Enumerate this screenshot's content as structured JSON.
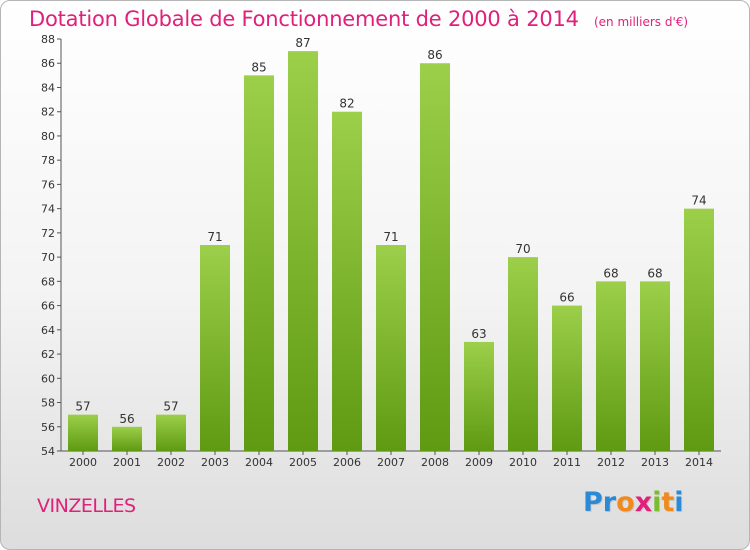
{
  "chart_data": {
    "type": "bar",
    "title": "Dotation Globale de Fonctionnement de 2000 à 2014",
    "subtitle": "(en milliers d'€)",
    "categories": [
      "2000",
      "2001",
      "2002",
      "2003",
      "2004",
      "2005",
      "2006",
      "2007",
      "2008",
      "2009",
      "2010",
      "2011",
      "2012",
      "2013",
      "2014"
    ],
    "values": [
      57,
      56,
      57,
      71,
      85,
      87,
      82,
      71,
      86,
      63,
      70,
      66,
      68,
      68,
      74
    ],
    "ylim": [
      54,
      88
    ],
    "yticks": [
      54,
      56,
      58,
      60,
      62,
      64,
      66,
      68,
      70,
      72,
      74,
      76,
      78,
      80,
      82,
      84,
      86,
      88
    ],
    "grid": false,
    "legend": "none",
    "bar_color_top": "#9ccf4a",
    "bar_color_bottom": "#5f9a12"
  },
  "location": {
    "name": "VINZELLES"
  },
  "logo": {
    "letters": [
      {
        "ch": "P",
        "color": "#2a8ad6"
      },
      {
        "ch": "r",
        "color": "#2a8ad6"
      },
      {
        "ch": "o",
        "color": "#f08a1c"
      },
      {
        "ch": "x",
        "color": "#e0207a"
      },
      {
        "ch": "i",
        "color": "#7cba2e"
      },
      {
        "ch": "t",
        "color": "#f08a1c"
      },
      {
        "ch": "i",
        "color": "#2a8ad6"
      }
    ]
  }
}
